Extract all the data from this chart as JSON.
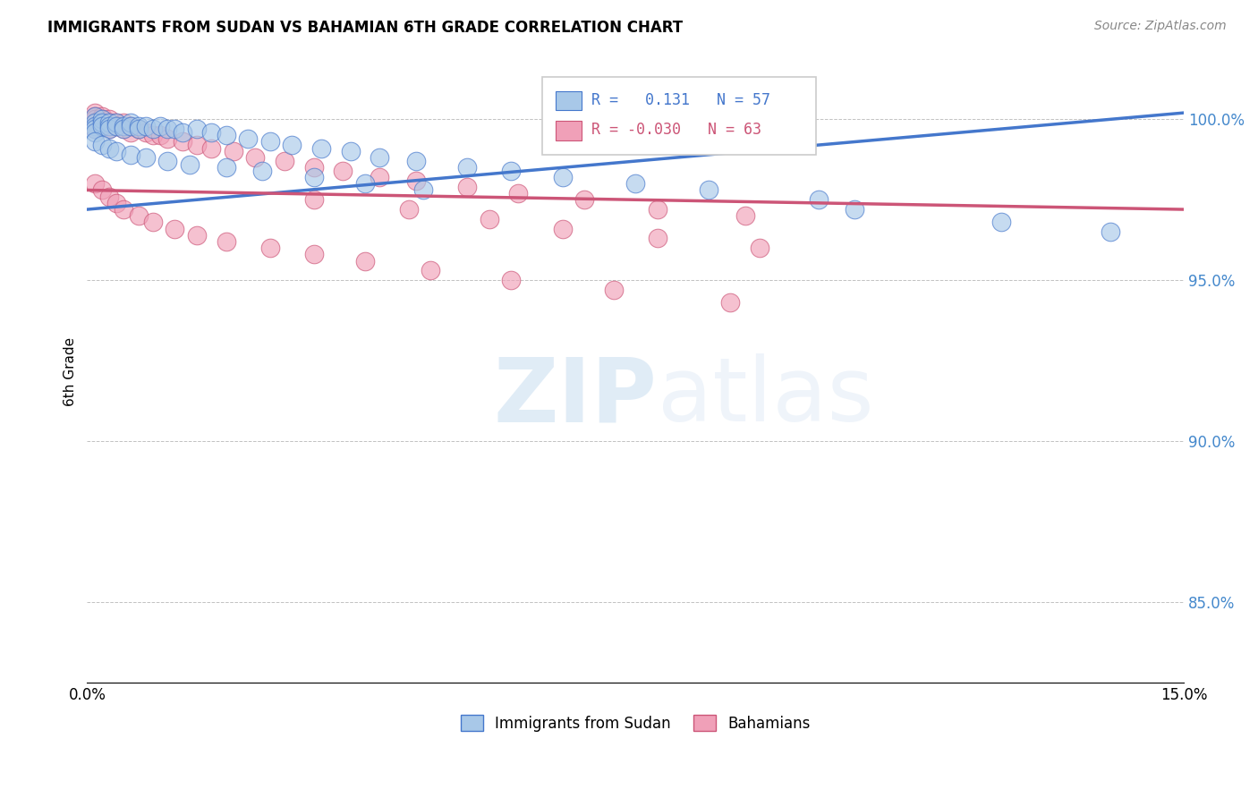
{
  "title": "IMMIGRANTS FROM SUDAN VS BAHAMIAN 6TH GRADE CORRELATION CHART",
  "source": "Source: ZipAtlas.com",
  "ylabel": "6th Grade",
  "ytick_labels": [
    "85.0%",
    "90.0%",
    "95.0%",
    "100.0%"
  ],
  "ytick_values": [
    0.85,
    0.9,
    0.95,
    1.0
  ],
  "xlim": [
    0.0,
    0.15
  ],
  "ylim": [
    0.825,
    1.018
  ],
  "legend1_R": "0.131",
  "legend1_N": "57",
  "legend2_R": "-0.030",
  "legend2_N": "63",
  "color_blue": "#a8c8e8",
  "color_pink": "#f0a0b8",
  "line_blue": "#4477cc",
  "line_pink": "#cc5577",
  "watermark_zip": "ZIP",
  "watermark_atlas": "atlas",
  "blue_line_x0": 0.0,
  "blue_line_y0": 0.972,
  "blue_line_x1": 0.15,
  "blue_line_y1": 1.002,
  "pink_line_x0": 0.0,
  "pink_line_y0": 0.978,
  "pink_line_x1": 0.15,
  "pink_line_y1": 0.972,
  "sudan_x": [
    0.001,
    0.001,
    0.001,
    0.001,
    0.001,
    0.002,
    0.002,
    0.002,
    0.003,
    0.003,
    0.003,
    0.004,
    0.004,
    0.005,
    0.005,
    0.006,
    0.006,
    0.007,
    0.007,
    0.008,
    0.009,
    0.01,
    0.011,
    0.012,
    0.013,
    0.015,
    0.017,
    0.019,
    0.022,
    0.025,
    0.028,
    0.032,
    0.036,
    0.04,
    0.045,
    0.052,
    0.058,
    0.065,
    0.075,
    0.085,
    0.1,
    0.105,
    0.125,
    0.14,
    0.001,
    0.002,
    0.003,
    0.004,
    0.006,
    0.008,
    0.011,
    0.014,
    0.019,
    0.024,
    0.031,
    0.038,
    0.046
  ],
  "sudan_y": [
    1.001,
    0.999,
    0.998,
    0.997,
    0.996,
    1.0,
    0.999,
    0.998,
    0.999,
    0.998,
    0.997,
    0.999,
    0.998,
    0.998,
    0.997,
    0.999,
    0.998,
    0.998,
    0.997,
    0.998,
    0.997,
    0.998,
    0.997,
    0.997,
    0.996,
    0.997,
    0.996,
    0.995,
    0.994,
    0.993,
    0.992,
    0.991,
    0.99,
    0.988,
    0.987,
    0.985,
    0.984,
    0.982,
    0.98,
    0.978,
    0.975,
    0.972,
    0.968,
    0.965,
    0.993,
    0.992,
    0.991,
    0.99,
    0.989,
    0.988,
    0.987,
    0.986,
    0.985,
    0.984,
    0.982,
    0.98,
    0.978
  ],
  "bahamian_x": [
    0.001,
    0.001,
    0.001,
    0.001,
    0.001,
    0.001,
    0.002,
    0.002,
    0.002,
    0.002,
    0.003,
    0.003,
    0.003,
    0.003,
    0.004,
    0.004,
    0.005,
    0.005,
    0.006,
    0.006,
    0.007,
    0.008,
    0.009,
    0.01,
    0.011,
    0.013,
    0.015,
    0.017,
    0.02,
    0.023,
    0.027,
    0.031,
    0.035,
    0.04,
    0.045,
    0.052,
    0.059,
    0.068,
    0.078,
    0.09,
    0.031,
    0.044,
    0.055,
    0.065,
    0.078,
    0.092,
    0.001,
    0.002,
    0.003,
    0.004,
    0.005,
    0.007,
    0.009,
    0.012,
    0.015,
    0.019,
    0.025,
    0.031,
    0.038,
    0.047,
    0.058,
    0.072,
    0.088
  ],
  "bahamian_y": [
    1.002,
    1.001,
    1.0,
    0.999,
    0.998,
    0.997,
    1.001,
    1.0,
    0.999,
    0.998,
    1.0,
    0.999,
    0.998,
    0.997,
    0.999,
    0.998,
    0.999,
    0.997,
    0.998,
    0.996,
    0.997,
    0.996,
    0.995,
    0.995,
    0.994,
    0.993,
    0.992,
    0.991,
    0.99,
    0.988,
    0.987,
    0.985,
    0.984,
    0.982,
    0.981,
    0.979,
    0.977,
    0.975,
    0.972,
    0.97,
    0.975,
    0.972,
    0.969,
    0.966,
    0.963,
    0.96,
    0.98,
    0.978,
    0.976,
    0.974,
    0.972,
    0.97,
    0.968,
    0.966,
    0.964,
    0.962,
    0.96,
    0.958,
    0.956,
    0.953,
    0.95,
    0.947,
    0.943
  ]
}
